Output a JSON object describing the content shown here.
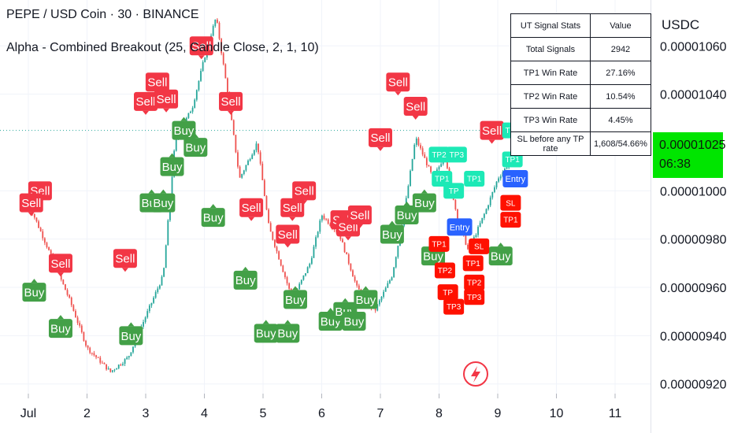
{
  "header": {
    "title": "PEPE / USD Coin · 30 · BINANCE",
    "subtitle": "Alpha - Combined Breakout (25, Candle Close, 2, 1, 10)"
  },
  "price_axis": {
    "currency": "USDC",
    "current_price": "0.00001025",
    "countdown": "06:38"
  },
  "stats_table": {
    "headers": [
      "UT  Signal Stats",
      "Value"
    ],
    "rows": [
      [
        "Total Signals",
        "2942"
      ],
      [
        "TP1 Win Rate",
        "27.16%"
      ],
      [
        "TP2 Win Rate",
        "10.54%"
      ],
      [
        "TP3 Win Rate",
        "4.45%"
      ],
      [
        "SL before any TP rate",
        "1,608/54.66%"
      ]
    ]
  },
  "colors": {
    "buy": "#43a047",
    "sell": "#f23645",
    "entry": "#2962ff",
    "tp": "#1de9b6",
    "sl": "#ff1100",
    "up_candle": "#26a69a",
    "down_candle": "#ef5350",
    "price_box": "#00e500"
  },
  "chart_data": {
    "type": "candlestick",
    "x_ticks": [
      "Jul",
      "2",
      "3",
      "4",
      "5",
      "6",
      "7",
      "8",
      "9",
      "10",
      "11"
    ],
    "y_ticks": [
      "0.00000920",
      "0.00000940",
      "0.00000960",
      "0.00000980",
      "0.00001000",
      "0.00001040",
      "0.00001060"
    ],
    "ylim": [
      9.16e-06,
      1.079e-05
    ],
    "current_price_line": 1.025e-05,
    "close_series": [
      {
        "x": 0.0,
        "y": 9.95e-06
      },
      {
        "x": 0.3,
        "y": 9.78e-06
      },
      {
        "x": 0.7,
        "y": 9.55e-06
      },
      {
        "x": 1.0,
        "y": 9.35e-06
      },
      {
        "x": 1.4,
        "y": 9.25e-06
      },
      {
        "x": 1.7,
        "y": 9.31e-06
      },
      {
        "x": 2.0,
        "y": 9.48e-06
      },
      {
        "x": 2.3,
        "y": 9.65e-06
      },
      {
        "x": 2.5,
        "y": 1.02e-05
      },
      {
        "x": 2.8,
        "y": 1.035e-05
      },
      {
        "x": 3.0,
        "y": 1.055e-05
      },
      {
        "x": 3.2,
        "y": 1.072e-05
      },
      {
        "x": 3.4,
        "y": 1.04e-05
      },
      {
        "x": 3.6,
        "y": 1.005e-05
      },
      {
        "x": 3.9,
        "y": 1.02e-05
      },
      {
        "x": 4.1,
        "y": 9.85e-06
      },
      {
        "x": 4.5,
        "y": 9.55e-06
      },
      {
        "x": 4.8,
        "y": 9.7e-06
      },
      {
        "x": 5.0,
        "y": 9.9e-06
      },
      {
        "x": 5.3,
        "y": 9.82e-06
      },
      {
        "x": 5.6,
        "y": 9.6e-06
      },
      {
        "x": 5.9,
        "y": 9.5e-06
      },
      {
        "x": 6.2,
        "y": 9.65e-06
      },
      {
        "x": 6.4,
        "y": 9.9e-06
      },
      {
        "x": 6.6,
        "y": 1.022e-05
      },
      {
        "x": 6.9,
        "y": 1.005e-05
      },
      {
        "x": 7.1,
        "y": 1.015e-05
      },
      {
        "x": 7.3,
        "y": 9.9e-06
      },
      {
        "x": 7.5,
        "y": 9.75e-06
      },
      {
        "x": 7.8,
        "y": 9.92e-06
      },
      {
        "x": 8.0,
        "y": 1.005e-05
      },
      {
        "x": 8.3,
        "y": 1.015e-05
      },
      {
        "x": 8.5,
        "y": 1.025e-05
      }
    ],
    "signals": [
      {
        "label": "Sell",
        "x": 0.2,
        "y": 1e-05,
        "type": "sell"
      },
      {
        "label": "Sell",
        "x": 0.05,
        "y": 9.95e-06,
        "type": "sell"
      },
      {
        "label": "Sell",
        "x": 0.55,
        "y": 9.7e-06,
        "type": "sell"
      },
      {
        "label": "Buy",
        "x": 0.1,
        "y": 9.58e-06,
        "type": "buy"
      },
      {
        "label": "Buy",
        "x": 0.55,
        "y": 9.43e-06,
        "type": "buy"
      },
      {
        "label": "Buy",
        "x": 1.75,
        "y": 9.4e-06,
        "type": "buy"
      },
      {
        "label": "Sell",
        "x": 1.65,
        "y": 9.72e-06,
        "type": "sell"
      },
      {
        "label": "Buy",
        "x": 2.1,
        "y": 9.95e-06,
        "type": "buy"
      },
      {
        "label": "Buy",
        "x": 2.3,
        "y": 9.95e-06,
        "type": "buy"
      },
      {
        "label": "Buy",
        "x": 2.45,
        "y": 1.01e-05,
        "type": "buy"
      },
      {
        "label": "Buy",
        "x": 2.65,
        "y": 1.025e-05,
        "type": "buy"
      },
      {
        "label": "Buy",
        "x": 2.85,
        "y": 1.018e-05,
        "type": "buy"
      },
      {
        "label": "Sell",
        "x": 2.0,
        "y": 1.037e-05,
        "type": "sell"
      },
      {
        "label": "Sell",
        "x": 2.2,
        "y": 1.045e-05,
        "type": "sell"
      },
      {
        "label": "Sell",
        "x": 2.35,
        "y": 1.038e-05,
        "type": "sell"
      },
      {
        "label": "Sell",
        "x": 2.6,
        "y": 1.09e-05,
        "type": "sell"
      },
      {
        "label": "Sell",
        "x": 2.95,
        "y": 1.06e-05,
        "type": "sell"
      },
      {
        "label": "Sell",
        "x": 3.45,
        "y": 1.037e-05,
        "type": "sell"
      },
      {
        "label": "Buy",
        "x": 3.15,
        "y": 9.89e-06,
        "type": "buy"
      },
      {
        "label": "Buy",
        "x": 3.7,
        "y": 9.63e-06,
        "type": "buy"
      },
      {
        "label": "Sell",
        "x": 3.8,
        "y": 9.93e-06,
        "type": "sell"
      },
      {
        "label": "Buy",
        "x": 4.05,
        "y": 9.41e-06,
        "type": "buy"
      },
      {
        "label": "Buy",
        "x": 4.42,
        "y": 9.41e-06,
        "type": "buy"
      },
      {
        "label": "Sell",
        "x": 4.42,
        "y": 9.82e-06,
        "type": "sell"
      },
      {
        "label": "Sell",
        "x": 4.5,
        "y": 9.93e-06,
        "type": "sell"
      },
      {
        "label": "Sell",
        "x": 4.7,
        "y": 1e-05,
        "type": "sell"
      },
      {
        "label": "Buy",
        "x": 4.55,
        "y": 9.55e-06,
        "type": "buy"
      },
      {
        "label": "Buy",
        "x": 5.15,
        "y": 9.46e-06,
        "type": "buy"
      },
      {
        "label": "Buy",
        "x": 5.4,
        "y": 9.5e-06,
        "type": "buy"
      },
      {
        "label": "Buy",
        "x": 5.55,
        "y": 9.46e-06,
        "type": "buy"
      },
      {
        "label": "Buy",
        "x": 5.75,
        "y": 9.55e-06,
        "type": "buy"
      },
      {
        "label": "Sell",
        "x": 5.35,
        "y": 9.88e-06,
        "type": "sell"
      },
      {
        "label": "Sell",
        "x": 5.45,
        "y": 9.85e-06,
        "type": "sell"
      },
      {
        "label": "Sell",
        "x": 5.65,
        "y": 9.9e-06,
        "type": "sell"
      },
      {
        "label": "Sell",
        "x": 6.0,
        "y": 1.022e-05,
        "type": "sell"
      },
      {
        "label": "Sell",
        "x": 6.3,
        "y": 1.045e-05,
        "type": "sell"
      },
      {
        "label": "Sell",
        "x": 6.6,
        "y": 1.035e-05,
        "type": "sell"
      },
      {
        "label": "Buy",
        "x": 6.2,
        "y": 9.82e-06,
        "type": "buy"
      },
      {
        "label": "Buy",
        "x": 6.45,
        "y": 9.9e-06,
        "type": "buy"
      },
      {
        "label": "Buy",
        "x": 6.75,
        "y": 9.95e-06,
        "type": "buy"
      },
      {
        "label": "Buy",
        "x": 6.9,
        "y": 9.73e-06,
        "type": "buy"
      },
      {
        "label": "Buy",
        "x": 8.05,
        "y": 9.73e-06,
        "type": "buy"
      },
      {
        "label": "Sell",
        "x": 7.9,
        "y": 1.025e-05,
        "type": "sell"
      },
      {
        "label": "Entry",
        "x": 8.3,
        "y": 1.005e-05,
        "type": "entry"
      },
      {
        "label": "Entry",
        "x": 7.35,
        "y": 9.85e-06,
        "type": "entry"
      },
      {
        "label": "TP1",
        "x": 8.25,
        "y": 1.013e-05,
        "type": "tp"
      },
      {
        "label": "TP3",
        "x": 8.25,
        "y": 1.025e-05,
        "type": "tp"
      },
      {
        "label": "TP3",
        "x": 7.3,
        "y": 1.015e-05,
        "type": "tp"
      },
      {
        "label": "TP2",
        "x": 7.0,
        "y": 1.015e-05,
        "type": "tp"
      },
      {
        "label": "TP1",
        "x": 7.05,
        "y": 1.005e-05,
        "type": "tp"
      },
      {
        "label": "TP1",
        "x": 7.6,
        "y": 1.005e-05,
        "type": "tp"
      },
      {
        "label": "TP",
        "x": 7.25,
        "y": 1e-05,
        "type": "tp"
      },
      {
        "label": "SL",
        "x": 8.22,
        "y": 9.95e-06,
        "type": "sl"
      },
      {
        "label": "TP1",
        "x": 8.22,
        "y": 9.88e-06,
        "type": "sl"
      },
      {
        "label": "SL",
        "x": 7.68,
        "y": 9.77e-06,
        "type": "sl"
      },
      {
        "label": "TP1",
        "x": 7.58,
        "y": 9.7e-06,
        "type": "sl"
      },
      {
        "label": "TP2",
        "x": 7.6,
        "y": 9.62e-06,
        "type": "sl"
      },
      {
        "label": "TP3",
        "x": 7.6,
        "y": 9.56e-06,
        "type": "sl"
      },
      {
        "label": "TP3",
        "x": 7.25,
        "y": 9.52e-06,
        "type": "sl"
      },
      {
        "label": "TP2",
        "x": 7.1,
        "y": 9.67e-06,
        "type": "sl"
      },
      {
        "label": "TP1",
        "x": 7.0,
        "y": 9.78e-06,
        "type": "sl"
      },
      {
        "label": "TP",
        "x": 7.15,
        "y": 9.58e-06,
        "type": "sl"
      }
    ]
  }
}
